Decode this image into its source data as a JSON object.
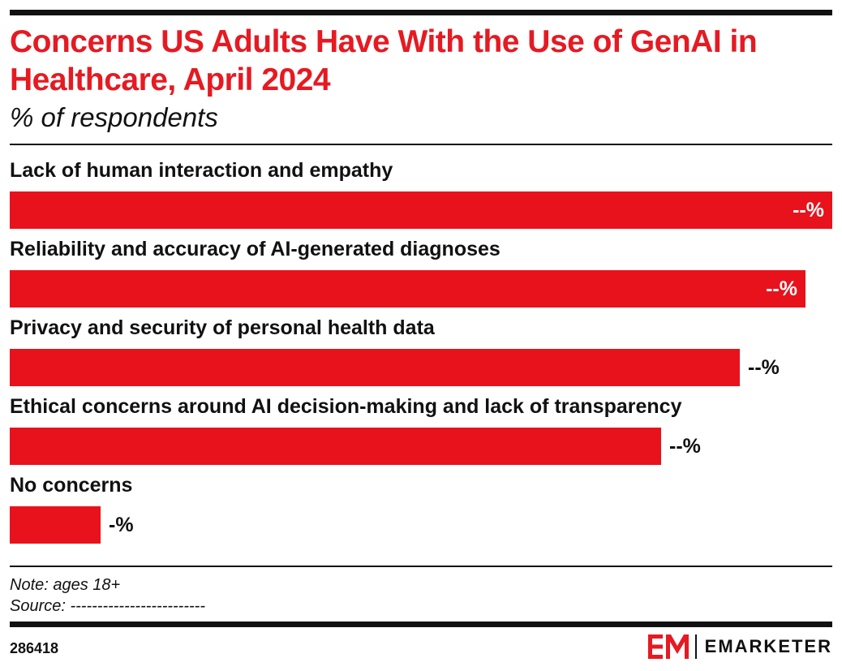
{
  "header": {
    "title": "Concerns US Adults Have With the Use of GenAI in Healthcare, April 2024",
    "subtitle": "% of respondents"
  },
  "chart_data": {
    "type": "bar",
    "orientation": "horizontal",
    "categories": [
      "Lack of human interaction and empathy",
      "Reliability and accuracy of AI-generated diagnoses",
      "Privacy and security of personal health data",
      "Ethical concerns around AI decision-making and lack of transparency",
      "No concerns"
    ],
    "relative_values": [
      1.0,
      0.967,
      0.888,
      0.792,
      0.11
    ],
    "value_labels": [
      "--%",
      "--%",
      "--%",
      "--%",
      "-%"
    ],
    "value_label_inside": [
      true,
      true,
      false,
      false,
      false
    ],
    "bar_color": "#e8121c",
    "title": "Concerns US Adults Have With the Use of GenAI in Healthcare, April 2024",
    "subtitle": "% of respondents",
    "grid": false,
    "legend": "none"
  },
  "footer": {
    "note": "Note: ages 18+",
    "source": "Source: -------------------------",
    "chart_id": "286418",
    "brand": "EMARKETER"
  },
  "colors": {
    "title": "#e51a22",
    "bar": "#e8121c",
    "rule": "#111111"
  }
}
